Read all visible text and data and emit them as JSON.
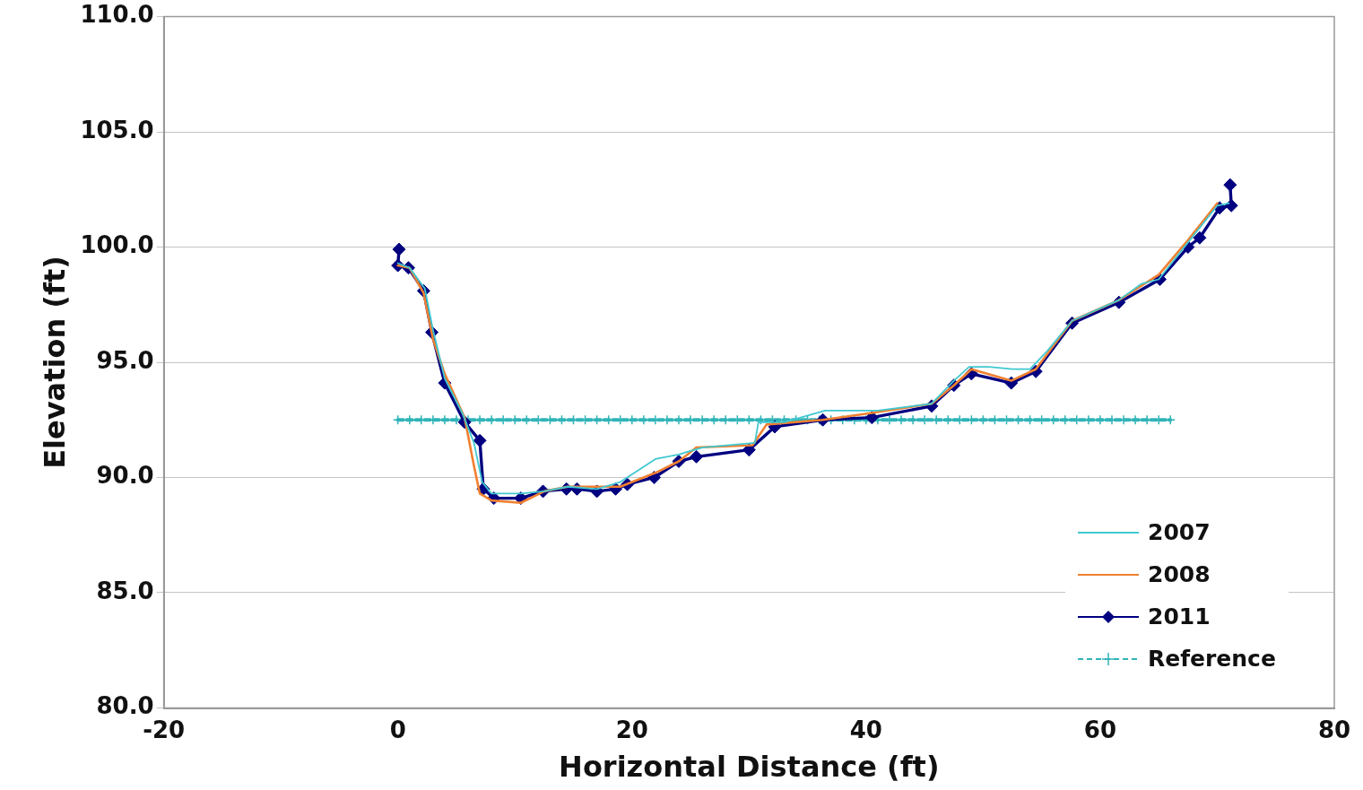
{
  "chart_data": {
    "type": "line",
    "xlabel": "Horizontal Distance (ft)",
    "ylabel": "Elevation (ft)",
    "xlim": [
      -20,
      80
    ],
    "xticks": [
      -20,
      0,
      20,
      40,
      60,
      80
    ],
    "ylim": [
      80,
      110
    ],
    "yticks": [
      {
        "value": 80,
        "label": "80.0"
      },
      {
        "value": 85,
        "label": "85.0"
      },
      {
        "value": 90,
        "label": "90.0"
      },
      {
        "value": 95,
        "label": "95.0"
      },
      {
        "value": 100,
        "label": "100.0"
      },
      {
        "value": 105,
        "label": "105.0"
      },
      {
        "value": 110,
        "label": "110.0"
      }
    ],
    "grid": "y",
    "legend": "bottom right",
    "series": [
      {
        "name": "2007",
        "color": "#40c8d0",
        "marker": "none",
        "line_style": "solid",
        "x": [
          0,
          1,
          2.3,
          3,
          4,
          5.5,
          6.5,
          7.2,
          8,
          10.5,
          12.5,
          14.5,
          17,
          19,
          22,
          24,
          26,
          30.5,
          30.8,
          33,
          36.5,
          41,
          45.6,
          47.5,
          48.8,
          50.5,
          52.5,
          54,
          55.5,
          57.6,
          61.6,
          63.5,
          65,
          67.5,
          70,
          71
        ],
        "values": [
          99.3,
          99.1,
          98.2,
          96.4,
          94.3,
          92.8,
          91.5,
          89.8,
          89.3,
          89.3,
          89.4,
          89.6,
          89.5,
          89.8,
          90.8,
          91.0,
          91.3,
          91.5,
          92.4,
          92.4,
          92.9,
          92.9,
          93.2,
          94.2,
          94.8,
          94.8,
          94.7,
          94.7,
          95.5,
          96.8,
          97.7,
          98.4,
          98.6,
          100.2,
          101.8,
          101.9
        ]
      },
      {
        "name": "2008",
        "color": "#f08030",
        "marker": "none",
        "line_style": "solid",
        "x": [
          0,
          1,
          2.2,
          3,
          4,
          5.7,
          6.5,
          7,
          8,
          10.5,
          12.5,
          14.5,
          17,
          19,
          22,
          24,
          25.5,
          30.3,
          31.5,
          36.3,
          40.5,
          45.6,
          47.5,
          49,
          52.4,
          54.5,
          57.6,
          61.6,
          65,
          67.5,
          70
        ],
        "values": [
          99.2,
          99.1,
          98.0,
          96.0,
          94.5,
          92.6,
          90.5,
          89.3,
          89.0,
          88.9,
          89.4,
          89.6,
          89.6,
          89.6,
          90.2,
          90.7,
          91.3,
          91.4,
          92.3,
          92.5,
          92.8,
          93.2,
          94.0,
          94.7,
          94.2,
          94.7,
          96.8,
          97.7,
          98.8,
          100.3,
          101.9
        ]
      },
      {
        "name": "2011",
        "color": "#000080",
        "marker": "diamond",
        "line_style": "solid",
        "x": [
          0.1,
          0,
          0.9,
          2.2,
          2.9,
          4.0,
          5.7,
          7.0,
          7.3,
          8.2,
          10.5,
          12.4,
          14.4,
          15.3,
          17.0,
          18.6,
          19.6,
          21.9,
          24.0,
          25.5,
          30.0,
          32.2,
          36.3,
          40.5,
          45.6,
          47.5,
          49.0,
          52.4,
          54.5,
          57.6,
          61.6,
          65.1,
          67.5,
          68.5,
          70.2,
          71.2,
          71.1
        ],
        "values": [
          99.9,
          99.2,
          99.1,
          98.1,
          96.3,
          94.1,
          92.4,
          91.6,
          89.5,
          89.1,
          89.1,
          89.4,
          89.5,
          89.5,
          89.4,
          89.5,
          89.7,
          90.0,
          90.7,
          90.9,
          91.2,
          92.2,
          92.5,
          92.6,
          93.1,
          94.0,
          94.5,
          94.1,
          94.6,
          96.7,
          97.6,
          98.6,
          100.0,
          100.4,
          101.7,
          101.8,
          102.7
        ]
      },
      {
        "name": "Reference",
        "color": "#30b4b8",
        "marker": "cross",
        "line_style": "dashed",
        "x": [
          0,
          1,
          2,
          3,
          4,
          5,
          6,
          7,
          8,
          9,
          10,
          11,
          12,
          13,
          14,
          15,
          16,
          17,
          18,
          19,
          20,
          21,
          22,
          23,
          24,
          25,
          26,
          27,
          28,
          29,
          30,
          31,
          32,
          33,
          34,
          35,
          36,
          37,
          38,
          39,
          40,
          41,
          42,
          43,
          44,
          45,
          46,
          47,
          48,
          49,
          50,
          51,
          52,
          53,
          54,
          55,
          56,
          57,
          58,
          59,
          60,
          61,
          62,
          63,
          64,
          65,
          66
        ],
        "values": [
          92.5,
          92.5,
          92.5,
          92.5,
          92.5,
          92.5,
          92.5,
          92.5,
          92.5,
          92.5,
          92.5,
          92.5,
          92.5,
          92.5,
          92.5,
          92.5,
          92.5,
          92.5,
          92.5,
          92.5,
          92.5,
          92.5,
          92.5,
          92.5,
          92.5,
          92.5,
          92.5,
          92.5,
          92.5,
          92.5,
          92.5,
          92.5,
          92.5,
          92.5,
          92.5,
          92.5,
          92.5,
          92.5,
          92.5,
          92.5,
          92.5,
          92.5,
          92.5,
          92.5,
          92.5,
          92.5,
          92.5,
          92.5,
          92.5,
          92.5,
          92.5,
          92.5,
          92.5,
          92.5,
          92.5,
          92.5,
          92.5,
          92.5,
          92.5,
          92.5,
          92.5,
          92.5,
          92.5,
          92.5,
          92.5,
          92.5,
          92.5
        ]
      }
    ]
  }
}
